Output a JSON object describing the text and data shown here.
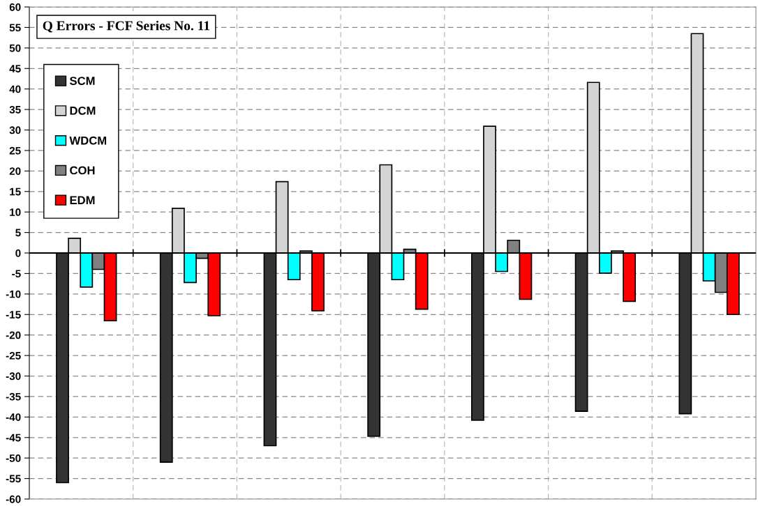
{
  "chart_data": {
    "type": "bar",
    "title": "Q Errors - FCF Series No. 11",
    "categories": [
      null,
      null,
      null,
      null,
      null,
      null,
      null
    ],
    "series": [
      {
        "name": "SCM",
        "color": "#333333",
        "values": [
          -56,
          -51,
          -47,
          -44.7,
          -40.8,
          -38.6,
          -39.2
        ]
      },
      {
        "name": "DCM",
        "color": "#d4d4d4",
        "values": [
          3.6,
          10.9,
          17.4,
          21.5,
          30.9,
          41.6,
          53.5
        ]
      },
      {
        "name": "WDCM",
        "color": "#00ffff",
        "values": [
          -8.3,
          -7.2,
          -6.5,
          -6.5,
          -4.5,
          -4.9,
          -6.8
        ]
      },
      {
        "name": "COH",
        "color": "#808080",
        "values": [
          -4,
          -1.3,
          0.5,
          0.9,
          3.1,
          0.5,
          -9.6
        ]
      },
      {
        "name": "EDM",
        "color": "#ff0000",
        "values": [
          -16.5,
          -15.3,
          -14.1,
          -13.7,
          -11.3,
          -11.8,
          -15
        ]
      }
    ],
    "ylim": [
      -60,
      60
    ],
    "yticks": [
      -60,
      -55,
      -50,
      -45,
      -40,
      -35,
      -30,
      -25,
      -20,
      -15,
      -10,
      -5,
      0,
      5,
      10,
      15,
      20,
      25,
      30,
      35,
      40,
      45,
      50,
      55,
      60
    ],
    "grid": true,
    "legend": "top left"
  }
}
